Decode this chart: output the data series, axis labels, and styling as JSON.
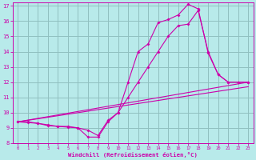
{
  "xlabel": "Windchill (Refroidissement éolien,°C)",
  "bg_color": "#b8eaea",
  "grid_color": "#90c0c0",
  "line_color": "#cc00aa",
  "xlim": [
    -0.5,
    23.5
  ],
  "ylim": [
    8,
    17.2
  ],
  "xticks": [
    0,
    1,
    2,
    3,
    4,
    5,
    6,
    7,
    8,
    9,
    10,
    11,
    12,
    13,
    14,
    15,
    16,
    17,
    18,
    19,
    20,
    21,
    22,
    23
  ],
  "yticks": [
    8,
    9,
    10,
    11,
    12,
    13,
    14,
    15,
    16,
    17
  ],
  "curve1_x": [
    0,
    1,
    2,
    3,
    4,
    5,
    6,
    7,
    8,
    9,
    10,
    11,
    12,
    13,
    14,
    15,
    16,
    17,
    18,
    19,
    20,
    21,
    22,
    23
  ],
  "curve1_y": [
    9.4,
    9.4,
    9.3,
    9.15,
    9.1,
    9.1,
    9.0,
    8.4,
    8.4,
    9.4,
    10.0,
    12.0,
    14.0,
    14.5,
    15.9,
    16.1,
    16.4,
    17.1,
    16.8,
    13.9,
    12.5,
    12.0,
    12.0,
    12.0
  ],
  "curve2_x": [
    0,
    1,
    2,
    3,
    4,
    5,
    6,
    7,
    8,
    9,
    10,
    11,
    12,
    13,
    14,
    15,
    16,
    17,
    18,
    19,
    20,
    21,
    22,
    23
  ],
  "curve2_y": [
    9.4,
    9.35,
    9.3,
    9.2,
    9.1,
    9.05,
    9.0,
    8.85,
    8.5,
    9.5,
    10.0,
    11.0,
    12.0,
    13.0,
    14.0,
    15.0,
    15.7,
    15.8,
    16.7,
    14.0,
    12.5,
    12.0,
    12.0,
    12.0
  ],
  "line3_x": [
    0,
    23
  ],
  "line3_y": [
    9.4,
    12.0
  ],
  "line4_x": [
    0,
    23
  ],
  "line4_y": [
    9.4,
    11.7
  ]
}
